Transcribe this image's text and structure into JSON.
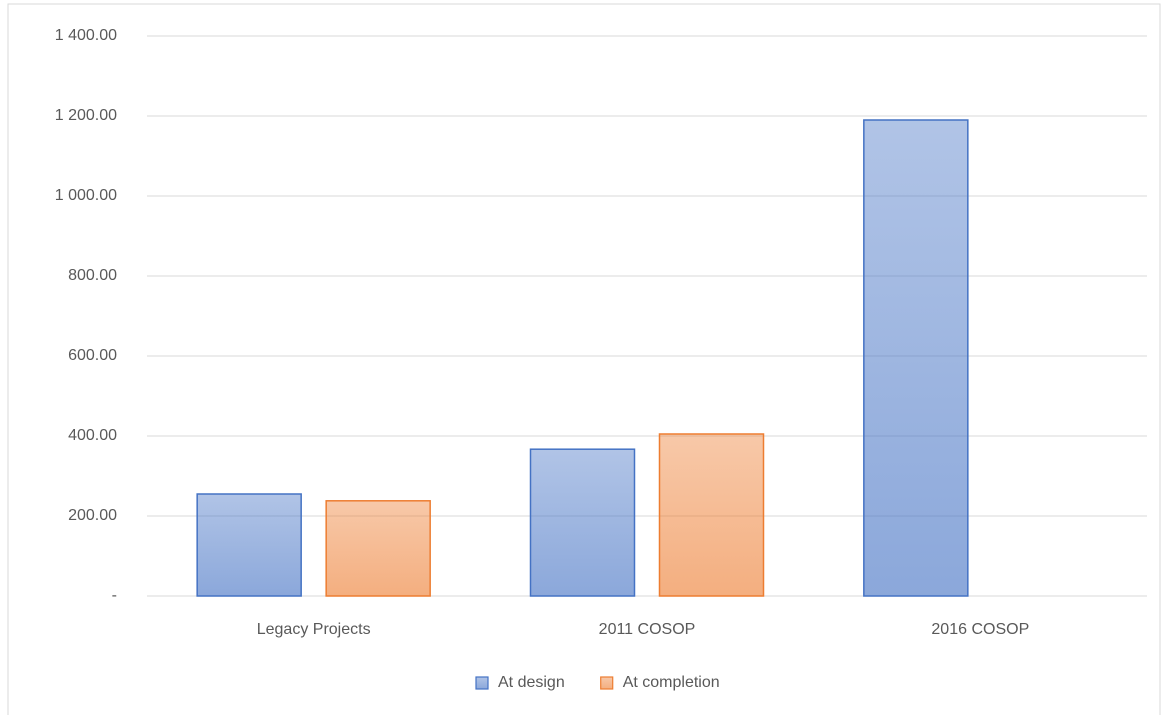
{
  "chart_data": {
    "type": "bar",
    "categories": [
      "Legacy Projects",
      "2011 COSOP",
      "2016 COSOP"
    ],
    "series": [
      {
        "name": "At design",
        "color": "#4472c4",
        "values": [
          255,
          367,
          1190
        ]
      },
      {
        "name": "At completion",
        "color": "#ed7d31",
        "values": [
          238,
          405,
          null
        ]
      }
    ],
    "ylim": [
      0,
      1400
    ],
    "yticks": [
      {
        "value": 0,
        "label": "-"
      },
      {
        "value": 200,
        "label": "200.00"
      },
      {
        "value": 400,
        "label": "400.00"
      },
      {
        "value": 600,
        "label": "600.00"
      },
      {
        "value": 800,
        "label": "800.00"
      },
      {
        "value": 1000,
        "label": "1 000.00"
      },
      {
        "value": 1200,
        "label": "1 200.00"
      },
      {
        "value": 1400,
        "label": "1 400.00"
      }
    ],
    "grid": true,
    "legend": "bottom"
  }
}
